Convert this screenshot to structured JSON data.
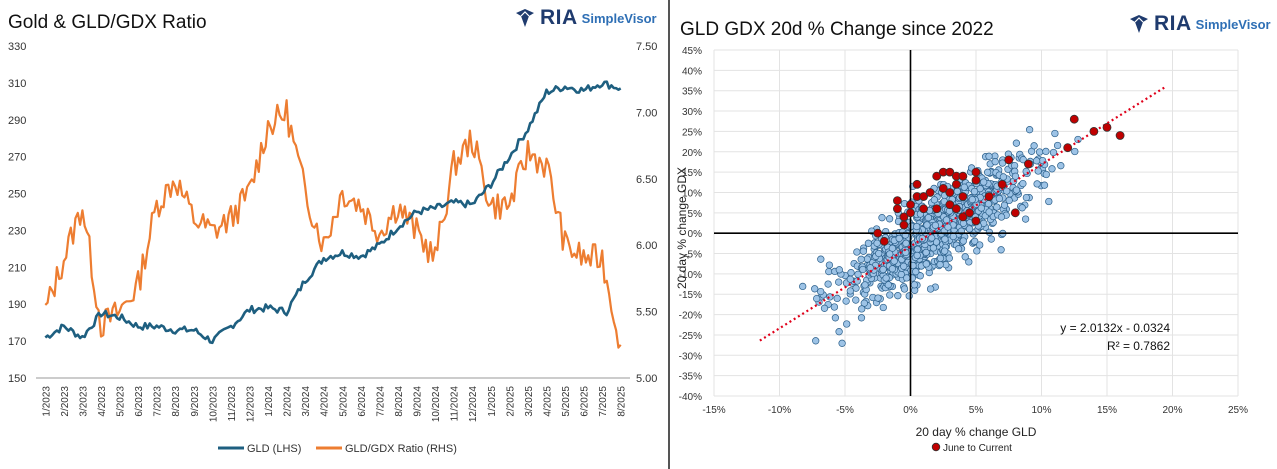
{
  "left": {
    "title": "Gold & GLD/GDX Ratio",
    "logo": {
      "brand": "RIA",
      "product": "SimpleVisor"
    }
  },
  "right": {
    "title": "GLD GDX 20d % Change since 2022",
    "logo": {
      "brand": "RIA",
      "product": "SimpleVisor"
    }
  },
  "colors": {
    "gld": "#1e5f80",
    "ratio": "#ed7d31",
    "scatter": "#9dc3e6",
    "highlight": "#c00000",
    "trend": "#e0001a"
  },
  "chart_data": [
    {
      "type": "line",
      "title": "Gold & GLD/GDX Ratio",
      "categories": [
        "1/2023",
        "2/2023",
        "3/2023",
        "4/2023",
        "5/2023",
        "6/2023",
        "7/2023",
        "8/2023",
        "9/2023",
        "10/2023",
        "11/2023",
        "12/2023",
        "1/2024",
        "2/2024",
        "3/2024",
        "4/2024",
        "5/2024",
        "6/2024",
        "7/2024",
        "8/2024",
        "9/2024",
        "10/2024",
        "11/2024",
        "12/2024",
        "1/2025",
        "2/2025",
        "3/2025",
        "4/2025",
        "5/2025",
        "6/2025",
        "7/2025",
        "8/2025"
      ],
      "ylim_left": [
        150,
        330
      ],
      "yticks_left": [
        "150",
        "170",
        "190",
        "210",
        "230",
        "250",
        "270",
        "290",
        "310",
        "330"
      ],
      "ylim_right": [
        5.0,
        7.5
      ],
      "yticks_right": [
        "5.00",
        "5.50",
        "6.00",
        "6.50",
        "7.00",
        "7.50"
      ],
      "series": [
        {
          "name": "GLD (LHS)",
          "axis": "left",
          "values": [
            172,
            178,
            172,
            185,
            183,
            178,
            178,
            176,
            176,
            170,
            178,
            187,
            188,
            186,
            203,
            215,
            218,
            216,
            222,
            232,
            240,
            242,
            245,
            244,
            255,
            270,
            285,
            305,
            308,
            306,
            310,
            307
          ]
        },
        {
          "name": "GLD/GDX Ratio (RHS)",
          "axis": "right",
          "values": [
            5.5,
            5.9,
            6.3,
            5.4,
            5.5,
            5.7,
            6.3,
            6.5,
            6.2,
            6.1,
            6.2,
            6.4,
            6.9,
            7.0,
            6.4,
            6.0,
            6.4,
            6.3,
            6.1,
            6.3,
            6.1,
            5.9,
            6.6,
            6.8,
            6.3,
            6.3,
            6.7,
            6.6,
            6.0,
            5.9,
            5.9,
            5.25
          ]
        }
      ]
    },
    {
      "type": "scatter",
      "title": "GLD GDX 20d % Change since 2022",
      "xlabel": "20 day % change GLD",
      "ylabel": "20 day % change GDX",
      "xlim": [
        -15,
        25
      ],
      "ylim": [
        -40,
        45
      ],
      "xticks": [
        "-15%",
        "-10%",
        "-5%",
        "0%",
        "5%",
        "10%",
        "15%",
        "20%",
        "25%"
      ],
      "yticks": [
        "-40%",
        "-35%",
        "-30%",
        "-25%",
        "-20%",
        "-15%",
        "-10%",
        "-5%",
        "0%",
        "5%",
        "10%",
        "15%",
        "20%",
        "25%",
        "30%",
        "35%",
        "40%",
        "45%"
      ],
      "regression": {
        "slope": 2.0132,
        "intercept": -3.24,
        "equation": "y = 2.0132x - 0.0324",
        "r2": "R² = 0.7862"
      },
      "legend": [
        "June to Current"
      ],
      "highlight_points": [
        [
          -2.5,
          0
        ],
        [
          -2,
          -2
        ],
        [
          -1,
          6
        ],
        [
          -1,
          8
        ],
        [
          -0.5,
          4
        ],
        [
          -0.5,
          2
        ],
        [
          0,
          5
        ],
        [
          0,
          7
        ],
        [
          0.5,
          9
        ],
        [
          0.5,
          12
        ],
        [
          1,
          6
        ],
        [
          1,
          9
        ],
        [
          1.5,
          10
        ],
        [
          2,
          14
        ],
        [
          2,
          6
        ],
        [
          2.5,
          15
        ],
        [
          2.5,
          11
        ],
        [
          3,
          15
        ],
        [
          3,
          10
        ],
        [
          3,
          7
        ],
        [
          3.5,
          14
        ],
        [
          3.5,
          12
        ],
        [
          3.5,
          6
        ],
        [
          4,
          14
        ],
        [
          4,
          9
        ],
        [
          4,
          4
        ],
        [
          4.5,
          5
        ],
        [
          5,
          3
        ],
        [
          5,
          13
        ],
        [
          5,
          15
        ],
        [
          6,
          9
        ],
        [
          7,
          12
        ],
        [
          7.5,
          18
        ],
        [
          8,
          5
        ],
        [
          9,
          17
        ],
        [
          12,
          21
        ],
        [
          12.5,
          28
        ],
        [
          14,
          25
        ],
        [
          15,
          26
        ],
        [
          16,
          24
        ]
      ]
    }
  ]
}
